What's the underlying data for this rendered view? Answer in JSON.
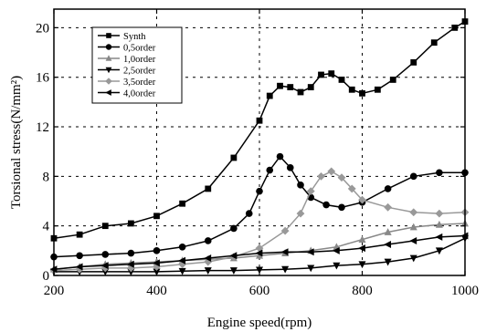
{
  "chart_data": {
    "type": "line",
    "xlabel": "Engine speed(rpm)",
    "ylabel": "Torsional stress(N/mm²)",
    "xlim": [
      200,
      1000
    ],
    "ylim": [
      0,
      21.5
    ],
    "x_ticks": [
      200,
      400,
      600,
      800,
      1000
    ],
    "y_ticks": [
      0,
      4,
      8,
      12,
      16,
      20
    ],
    "grid": true,
    "legend_position": "top-left",
    "series": [
      {
        "name": "Synth",
        "marker": "square",
        "color": "#000000",
        "points": [
          [
            200,
            3.0
          ],
          [
            250,
            3.3
          ],
          [
            300,
            4.0
          ],
          [
            350,
            4.2
          ],
          [
            400,
            4.8
          ],
          [
            450,
            5.8
          ],
          [
            500,
            7.0
          ],
          [
            550,
            9.5
          ],
          [
            600,
            12.5
          ],
          [
            620,
            14.5
          ],
          [
            640,
            15.3
          ],
          [
            660,
            15.2
          ],
          [
            680,
            14.8
          ],
          [
            700,
            15.2
          ],
          [
            720,
            16.2
          ],
          [
            740,
            16.3
          ],
          [
            760,
            15.8
          ],
          [
            780,
            15.0
          ],
          [
            800,
            14.7
          ],
          [
            830,
            15.0
          ],
          [
            860,
            15.8
          ],
          [
            900,
            17.2
          ],
          [
            940,
            18.8
          ],
          [
            980,
            20.0
          ],
          [
            1000,
            20.5
          ]
        ]
      },
      {
        "name": "0,5order",
        "marker": "circle",
        "color": "#000000",
        "points": [
          [
            200,
            1.5
          ],
          [
            250,
            1.6
          ],
          [
            300,
            1.7
          ],
          [
            350,
            1.8
          ],
          [
            400,
            2.0
          ],
          [
            450,
            2.3
          ],
          [
            500,
            2.8
          ],
          [
            550,
            3.8
          ],
          [
            580,
            5.0
          ],
          [
            600,
            6.8
          ],
          [
            620,
            8.5
          ],
          [
            640,
            9.6
          ],
          [
            660,
            8.7
          ],
          [
            680,
            7.3
          ],
          [
            700,
            6.3
          ],
          [
            730,
            5.7
          ],
          [
            760,
            5.5
          ],
          [
            800,
            5.9
          ],
          [
            850,
            7.0
          ],
          [
            900,
            8.0
          ],
          [
            950,
            8.3
          ],
          [
            1000,
            8.3
          ]
        ]
      },
      {
        "name": "1,0order",
        "marker": "triangle-up",
        "color": "#888888",
        "points": [
          [
            200,
            0.5
          ],
          [
            250,
            0.7
          ],
          [
            300,
            0.9
          ],
          [
            350,
            1.0
          ],
          [
            400,
            1.1
          ],
          [
            450,
            1.2
          ],
          [
            500,
            1.3
          ],
          [
            550,
            1.4
          ],
          [
            600,
            1.6
          ],
          [
            650,
            1.8
          ],
          [
            700,
            2.0
          ],
          [
            750,
            2.3
          ],
          [
            800,
            2.9
          ],
          [
            850,
            3.5
          ],
          [
            900,
            3.9
          ],
          [
            950,
            4.1
          ],
          [
            1000,
            4.2
          ]
        ]
      },
      {
        "name": "2,5order",
        "marker": "triangle-down",
        "color": "#000000",
        "points": [
          [
            200,
            0.3
          ],
          [
            250,
            0.3
          ],
          [
            300,
            0.3
          ],
          [
            350,
            0.3
          ],
          [
            400,
            0.3
          ],
          [
            450,
            0.35
          ],
          [
            500,
            0.4
          ],
          [
            550,
            0.4
          ],
          [
            600,
            0.45
          ],
          [
            650,
            0.5
          ],
          [
            700,
            0.6
          ],
          [
            750,
            0.8
          ],
          [
            800,
            0.9
          ],
          [
            850,
            1.1
          ],
          [
            900,
            1.4
          ],
          [
            950,
            2.0
          ],
          [
            1000,
            3.0
          ]
        ]
      },
      {
        "name": "3,5order",
        "marker": "diamond",
        "color": "#999999",
        "points": [
          [
            200,
            0.4
          ],
          [
            250,
            0.5
          ],
          [
            300,
            0.6
          ],
          [
            350,
            0.6
          ],
          [
            400,
            0.7
          ],
          [
            450,
            0.9
          ],
          [
            500,
            1.1
          ],
          [
            550,
            1.5
          ],
          [
            600,
            2.2
          ],
          [
            650,
            3.6
          ],
          [
            680,
            5.0
          ],
          [
            700,
            6.8
          ],
          [
            720,
            8.0
          ],
          [
            740,
            8.4
          ],
          [
            760,
            7.9
          ],
          [
            780,
            7.0
          ],
          [
            800,
            6.1
          ],
          [
            850,
            5.5
          ],
          [
            900,
            5.1
          ],
          [
            950,
            5.0
          ],
          [
            1000,
            5.1
          ]
        ]
      },
      {
        "name": "4,0order",
        "marker": "triangle-left",
        "color": "#000000",
        "points": [
          [
            200,
            0.5
          ],
          [
            250,
            0.7
          ],
          [
            300,
            0.8
          ],
          [
            350,
            0.9
          ],
          [
            400,
            1.0
          ],
          [
            450,
            1.2
          ],
          [
            500,
            1.4
          ],
          [
            550,
            1.6
          ],
          [
            600,
            1.8
          ],
          [
            650,
            1.9
          ],
          [
            700,
            1.9
          ],
          [
            750,
            2.0
          ],
          [
            800,
            2.2
          ],
          [
            850,
            2.5
          ],
          [
            900,
            2.8
          ],
          [
            950,
            3.1
          ],
          [
            1000,
            3.2
          ]
        ]
      }
    ]
  }
}
